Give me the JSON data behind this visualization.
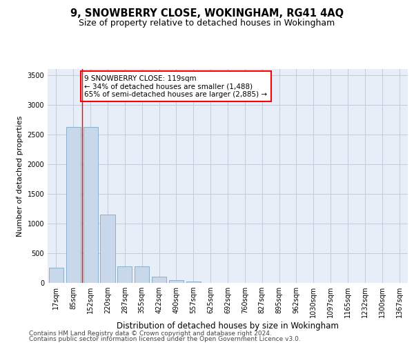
{
  "title": "9, SNOWBERRY CLOSE, WOKINGHAM, RG41 4AQ",
  "subtitle": "Size of property relative to detached houses in Wokingham",
  "xlabel": "Distribution of detached houses by size in Wokingham",
  "ylabel": "Number of detached properties",
  "footnote1": "Contains HM Land Registry data © Crown copyright and database right 2024.",
  "footnote2": "Contains public sector information licensed under the Open Government Licence v3.0.",
  "bar_labels": [
    "17sqm",
    "85sqm",
    "152sqm",
    "220sqm",
    "287sqm",
    "355sqm",
    "422sqm",
    "490sqm",
    "557sqm",
    "625sqm",
    "692sqm",
    "760sqm",
    "827sqm",
    "895sqm",
    "962sqm",
    "1030sqm",
    "1097sqm",
    "1165sqm",
    "1232sqm",
    "1300sqm",
    "1367sqm"
  ],
  "bar_values": [
    250,
    2620,
    2620,
    1150,
    280,
    275,
    100,
    45,
    20,
    5,
    0,
    0,
    0,
    0,
    0,
    0,
    0,
    0,
    0,
    0,
    0
  ],
  "bar_color": "#c8d8ea",
  "bar_edge_color": "#8ab0cc",
  "property_line_x": 1.5,
  "property_sqm": 119,
  "annotation_text": "9 SNOWBERRY CLOSE: 119sqm\n← 34% of detached houses are smaller (1,488)\n65% of semi-detached houses are larger (2,885) →",
  "annotation_box_color": "white",
  "annotation_box_edge_color": "red",
  "ylim": [
    0,
    3600
  ],
  "yticks": [
    0,
    500,
    1000,
    1500,
    2000,
    2500,
    3000,
    3500
  ],
  "grid_color": "#c0ccdc",
  "background_color": "#e8eef8",
  "title_fontsize": 10.5,
  "subtitle_fontsize": 9,
  "ylabel_fontsize": 8,
  "xlabel_fontsize": 8.5,
  "tick_fontsize": 7,
  "annotation_fontsize": 7.5,
  "footnote_fontsize": 6.5
}
